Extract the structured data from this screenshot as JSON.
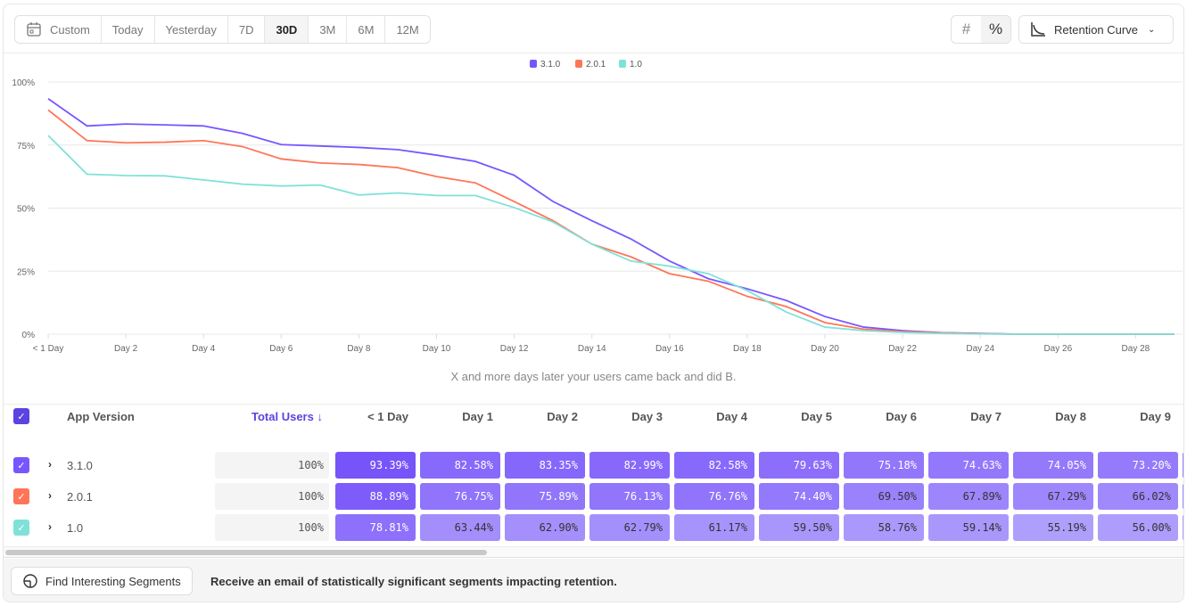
{
  "toolbar": {
    "ranges": [
      "Custom",
      "Today",
      "Yesterday",
      "7D",
      "30D",
      "3M",
      "6M",
      "12M"
    ],
    "active_range": "30D",
    "count_icon": "hash-icon",
    "percent_icon": "percent-icon",
    "view_label": "Retention Curve"
  },
  "colors": {
    "3.1.0": "#7856ff",
    "2.0.1": "#ff7557",
    "1.0": "#80e1d9"
  },
  "chart_data": {
    "type": "line",
    "title": "",
    "xlabel": "",
    "ylabel": "",
    "ylim": [
      0,
      100
    ],
    "y_ticks": [
      "0%",
      "25%",
      "50%",
      "75%",
      "100%"
    ],
    "x_ticks": [
      "< 1 Day",
      "Day 2",
      "Day 4",
      "Day 6",
      "Day 8",
      "Day 10",
      "Day 12",
      "Day 14",
      "Day 16",
      "Day 18",
      "Day 20",
      "Day 22",
      "Day 24",
      "Day 26",
      "Day 28"
    ],
    "x": [
      0,
      1,
      2,
      3,
      4,
      5,
      6,
      7,
      8,
      9,
      10,
      11,
      12,
      13,
      14,
      15,
      16,
      17,
      18,
      19,
      20,
      21,
      22,
      23,
      24,
      25,
      26,
      27,
      28,
      29
    ],
    "legend_position": "top-center",
    "grid": true,
    "series": [
      {
        "name": "3.1.0",
        "color": "#7856ff",
        "values": [
          93.39,
          82.58,
          83.35,
          82.99,
          82.58,
          79.63,
          75.18,
          74.63,
          74.05,
          73.2,
          71,
          68.5,
          63,
          52.6,
          45,
          37.8,
          29,
          22,
          18,
          13.4,
          7,
          2.8,
          1.4,
          0.6,
          0.3,
          0,
          0,
          0,
          0,
          0
        ]
      },
      {
        "name": "2.0.1",
        "color": "#ff7557",
        "values": [
          88.89,
          76.75,
          75.89,
          76.13,
          76.76,
          74.4,
          69.5,
          67.89,
          67.29,
          66.02,
          62.5,
          60,
          52.6,
          45,
          35.7,
          30.7,
          24,
          21,
          15,
          11,
          4.6,
          2,
          1,
          0.5,
          0.2,
          0,
          0,
          0,
          0,
          0
        ]
      },
      {
        "name": "1.0",
        "color": "#80e1d9",
        "values": [
          78.81,
          63.44,
          62.9,
          62.79,
          61.17,
          59.5,
          58.76,
          59.14,
          55.19,
          56.0,
          55,
          55,
          50.2,
          44.5,
          35.7,
          29,
          27,
          24,
          17.3,
          8.8,
          2.8,
          1.4,
          0.7,
          0.3,
          0.1,
          0,
          0,
          0,
          0,
          0
        ]
      }
    ]
  },
  "subtitle": "X and more days later your users came back and did B.",
  "table": {
    "headers": {
      "segment": "App Version",
      "total": "Total Users ↓",
      "days": [
        "< 1 Day",
        "Day 1",
        "Day 2",
        "Day 3",
        "Day 4",
        "Day 5",
        "Day 6",
        "Day 7",
        "Day 8",
        "Day 9"
      ]
    },
    "rows": [
      {
        "name": "3.1.0",
        "total": "100%",
        "cells": [
          "93.39%",
          "82.58%",
          "83.35%",
          "82.99%",
          "82.58%",
          "79.63%",
          "75.18%",
          "74.63%",
          "74.05%",
          "73.20%"
        ]
      },
      {
        "name": "2.0.1",
        "total": "100%",
        "cells": [
          "88.89%",
          "76.75%",
          "75.89%",
          "76.13%",
          "76.76%",
          "74.40%",
          "69.50%",
          "67.89%",
          "67.29%",
          "66.02%"
        ]
      },
      {
        "name": "1.0",
        "total": "100%",
        "cells": [
          "78.81%",
          "63.44%",
          "62.90%",
          "62.79%",
          "61.17%",
          "59.50%",
          "58.76%",
          "59.14%",
          "55.19%",
          "56.00%"
        ]
      }
    ]
  },
  "footer": {
    "button_label": "Find Interesting Segments",
    "text": "Receive an email of statistically significant segments impacting retention."
  }
}
